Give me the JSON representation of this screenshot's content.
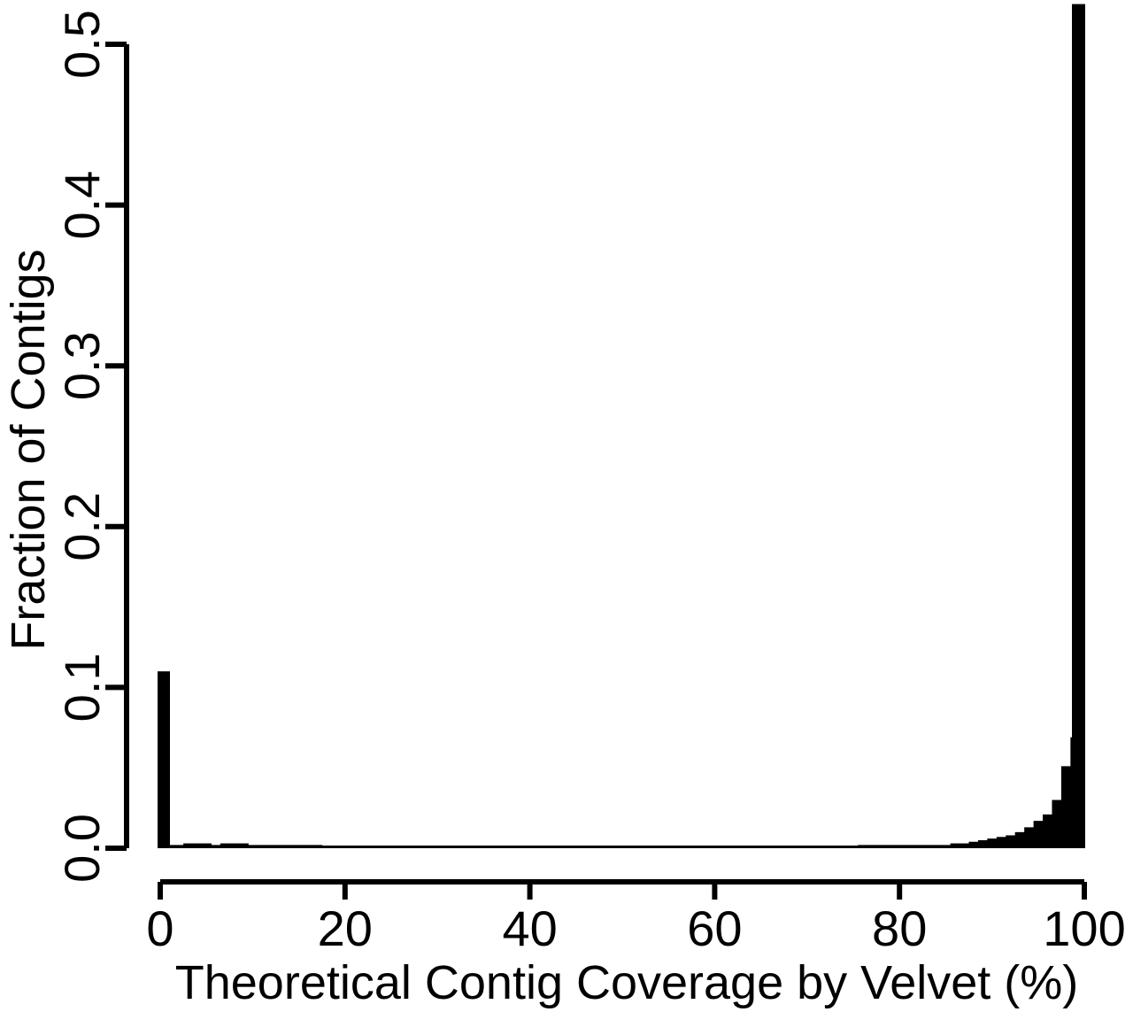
{
  "chart_data": {
    "type": "bar",
    "title": "",
    "xlabel": "Theoretical Contig Coverage by Velvet (%)",
    "ylabel": "Fraction of Contigs",
    "xlim": [
      0,
      100
    ],
    "ylim": [
      0,
      0.5
    ],
    "xticks": [
      "0",
      "20",
      "40",
      "60",
      "80",
      "100"
    ],
    "yticks": [
      "0.0",
      "0.1",
      "0.2",
      "0.3",
      "0.4",
      "0.5"
    ],
    "bin_width": 1,
    "bar_color": "#000000",
    "grid": false,
    "values": [
      0.11,
      0.002,
      0.002,
      0.003,
      0.003,
      0.003,
      0.002,
      0.003,
      0.003,
      0.003,
      0.002,
      0.002,
      0.002,
      0.002,
      0.002,
      0.002,
      0.002,
      0.002,
      0.001,
      0.001,
      0.001,
      0.001,
      0.001,
      0.001,
      0.001,
      0.001,
      0.001,
      0.001,
      0.001,
      0.001,
      0.001,
      0.001,
      0.001,
      0.001,
      0.001,
      0.001,
      0.001,
      0.001,
      0.001,
      0.001,
      0.001,
      0.001,
      0.001,
      0.001,
      0.001,
      0.001,
      0.001,
      0.001,
      0.001,
      0.001,
      0.001,
      0.001,
      0.001,
      0.001,
      0.001,
      0.001,
      0.001,
      0.001,
      0.001,
      0.001,
      0.001,
      0.001,
      0.001,
      0.001,
      0.001,
      0.001,
      0.001,
      0.001,
      0.001,
      0.001,
      0.001,
      0.001,
      0.001,
      0.001,
      0.001,
      0.001,
      0.002,
      0.002,
      0.002,
      0.002,
      0.002,
      0.002,
      0.002,
      0.002,
      0.002,
      0.002,
      0.003,
      0.003,
      0.004,
      0.005,
      0.006,
      0.007,
      0.008,
      0.01,
      0.013,
      0.017,
      0.021,
      0.03,
      0.051,
      0.069,
      0.525
    ]
  }
}
